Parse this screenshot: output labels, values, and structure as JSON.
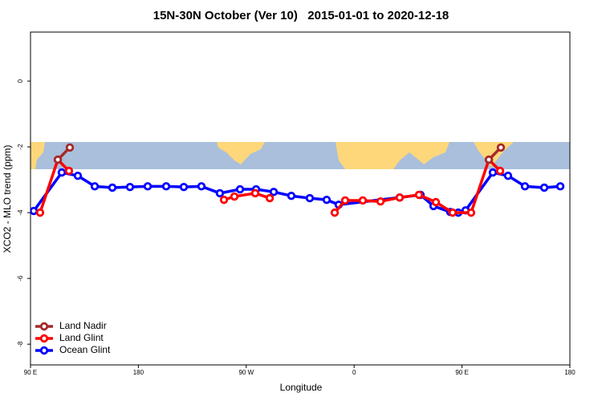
{
  "chart_data": {
    "type": "line",
    "title": "15N-30N October (Ver 10)   2015-01-01 to 2020-12-18",
    "x_label": "Longitude",
    "y_label": "XCO2 - MLO trend (ppm)",
    "xlim": [
      90,
      540
    ],
    "ylim": [
      -8.63,
      1.49
    ],
    "xticks": [
      {
        "value": 90,
        "label": "90 E"
      },
      180,
      {
        "value": 270,
        "label": "90 W"
      },
      {
        "value": 360,
        "label": "0"
      },
      {
        "value": 450,
        "label": "90 E"
      },
      {
        "value": 540,
        "label": "180"
      }
    ],
    "yticks": [
      -8,
      -6,
      -4,
      -2,
      0
    ],
    "legend": "bottom-left",
    "series": [
      {
        "name": "Land Nadir",
        "color": "#a52a2a",
        "x": [
          112.8,
          122.8,
          null,
          472.4,
          482.4
        ],
        "values": [
          -2.39,
          -2.02,
          null,
          -2.39,
          -2.02
        ]
      },
      {
        "name": "Land Glint",
        "color": "#ff0000",
        "x": [
          98.0,
          112.8,
          122.1,
          null,
          251.4,
          260.1,
          277.5,
          289.6,
          null,
          343.8,
          352.5,
          367.2,
          382.0,
          398.0,
          414.1,
          428.2,
          442.2,
          457.6,
          472.4,
          481.8
        ],
        "values": [
          -4.0,
          -2.39,
          -2.73,
          null,
          -3.61,
          -3.51,
          -3.41,
          -3.56,
          null,
          -4.0,
          -3.63,
          -3.63,
          -3.66,
          -3.54,
          -3.46,
          -3.68,
          -4.0,
          -4.0,
          -2.39,
          -2.73
        ]
      },
      {
        "name": "Ocean Glint",
        "color": "#0000ff",
        "x": [
          92.7,
          116.1,
          129.5,
          143.6,
          158.3,
          173.0,
          187.8,
          203.2,
          217.9,
          232.6,
          248.0,
          264.8,
          278.2,
          292.9,
          307.6,
          323.0,
          337.1,
          347.1,
          398.0,
          415.4,
          426.2,
          440.2,
          446.9,
          453.0,
          475.7,
          488.4,
          502.5,
          518.6,
          532.0
        ],
        "values": [
          -3.95,
          -2.78,
          -2.88,
          -3.2,
          -3.24,
          -3.22,
          -3.2,
          -3.2,
          -3.22,
          -3.2,
          -3.41,
          -3.29,
          -3.29,
          -3.37,
          -3.49,
          -3.56,
          -3.61,
          -3.76,
          -3.54,
          -3.46,
          -3.8,
          -3.98,
          -4.0,
          -3.93,
          -2.78,
          -2.88,
          -3.2,
          -3.24,
          -3.2
        ]
      }
    ]
  }
}
